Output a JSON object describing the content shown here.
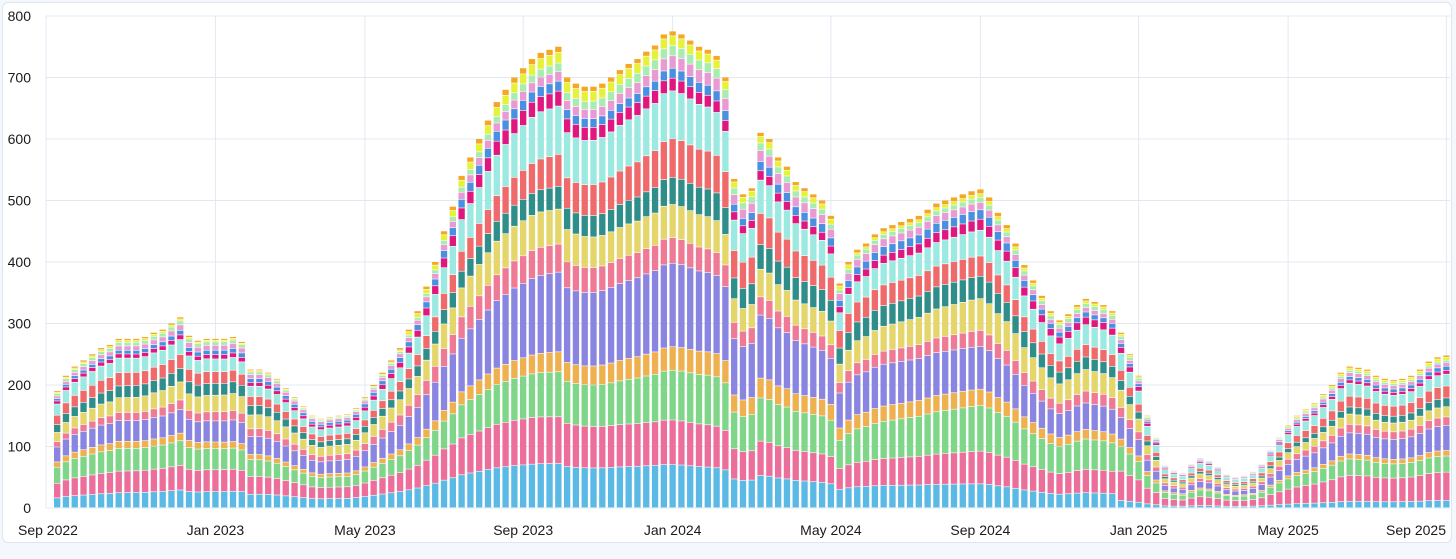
{
  "chart_data": {
    "type": "bar",
    "stacked": true,
    "title": "",
    "xlabel": "",
    "ylabel": "",
    "ylim": [
      0,
      800
    ],
    "y_ticks": [
      0,
      100,
      200,
      300,
      400,
      500,
      600,
      700,
      800
    ],
    "x_ticks": [
      {
        "label": "Sep 2022",
        "week": 0
      },
      {
        "label": "Jan 2023",
        "week": 18
      },
      {
        "label": "May 2023",
        "week": 35
      },
      {
        "label": "Sep 2023",
        "week": 53
      },
      {
        "label": "Jan 2024",
        "week": 70
      },
      {
        "label": "May 2024",
        "week": 88
      },
      {
        "label": "Sep 2024",
        "week": 105
      },
      {
        "label": "Jan 2025",
        "week": 123
      },
      {
        "label": "May 2025",
        "week": 140
      },
      {
        "label": "Sep 2025",
        "week": 158
      }
    ],
    "bar_count": 159,
    "totals": [
      190,
      215,
      230,
      240,
      250,
      260,
      265,
      275,
      275,
      275,
      278,
      285,
      290,
      300,
      310,
      280,
      272,
      275,
      275,
      275,
      278,
      270,
      225,
      225,
      220,
      210,
      195,
      180,
      165,
      150,
      145,
      148,
      150,
      152,
      162,
      180,
      200,
      220,
      240,
      260,
      290,
      320,
      360,
      400,
      450,
      490,
      540,
      570,
      600,
      630,
      660,
      680,
      700,
      715,
      730,
      740,
      745,
      750,
      700,
      690,
      685,
      685,
      690,
      700,
      712,
      722,
      730,
      742,
      752,
      770,
      775,
      770,
      760,
      750,
      745,
      735,
      700,
      535,
      510,
      520,
      610,
      600,
      570,
      555,
      530,
      520,
      510,
      500,
      475,
      365,
      400,
      420,
      430,
      445,
      455,
      460,
      465,
      470,
      475,
      485,
      495,
      500,
      505,
      510,
      515,
      518,
      505,
      480,
      460,
      430,
      395,
      370,
      345,
      320,
      305,
      315,
      330,
      340,
      335,
      330,
      320,
      285,
      250,
      215,
      150,
      115,
      70,
      62,
      58,
      72,
      82,
      78,
      68,
      56,
      52,
      54,
      60,
      72,
      95,
      115,
      135,
      150,
      160,
      170,
      185,
      200,
      220,
      230,
      228,
      225,
      215,
      210,
      208,
      210,
      215,
      225,
      238,
      245,
      248
    ],
    "categories_order_bottom_to_top": [
      "sky-blue",
      "pink",
      "green",
      "orange",
      "purple",
      "rose",
      "yellow",
      "teal",
      "coral",
      "aqua",
      "magenta",
      "blue",
      "lavender",
      "light-green",
      "lime",
      "small-misc"
    ],
    "series_colors": [
      "#5bb9e6",
      "#ec6f9b",
      "#7fd688",
      "#efb050",
      "#8a85e0",
      "#ef7a95",
      "#e4d66a",
      "#2f8e8a",
      "#ef6a6a",
      "#9be9e0",
      "#e0177f",
      "#4a8fe0",
      "#e99ad2",
      "#a8ecb0",
      "#e6f23a",
      "#f5a623"
    ]
  }
}
